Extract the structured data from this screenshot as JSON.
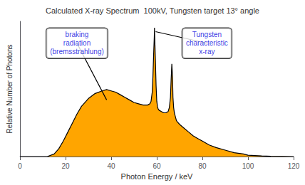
{
  "chart_data": {
    "type": "area",
    "title": "Calculated X-ray Spectrum  100kV, Tungsten target 13° angle",
    "xlabel": "Photon Energy / keV",
    "ylabel": "Relative Number of Photons",
    "color": "#FFA500",
    "xlim": [
      0,
      120
    ],
    "ylim": [
      0,
      1.05
    ],
    "xticks": [
      0,
      20,
      40,
      60,
      80,
      100,
      120
    ],
    "yticks": [],
    "tick_labels": "x",
    "grid": false,
    "x": [
      0,
      8,
      12,
      15,
      17,
      19,
      21,
      23,
      25,
      27,
      30,
      33,
      36,
      38,
      40,
      42,
      44,
      46,
      48,
      50,
      52,
      54,
      56,
      57,
      57.5,
      58,
      58.3,
      58.6,
      58.9,
      59.0,
      59.1,
      59.4,
      59.7,
      60.0,
      60.3,
      60.6,
      61.0,
      62,
      63,
      64,
      65,
      65.5,
      66.0,
      66.3,
      66.6,
      66.9,
      67.0,
      67.1,
      67.4,
      67.7,
      68.0,
      68.3,
      68.6,
      69,
      70,
      72,
      74,
      76,
      78,
      80,
      83,
      86,
      90,
      94,
      98,
      100,
      103,
      106,
      110,
      115,
      120
    ],
    "values": [
      0,
      0.0,
      0.0,
      0.02,
      0.06,
      0.12,
      0.19,
      0.26,
      0.33,
      0.39,
      0.45,
      0.49,
      0.51,
      0.52,
      0.51,
      0.5,
      0.48,
      0.46,
      0.44,
      0.42,
      0.41,
      0.4,
      0.4,
      0.41,
      0.43,
      0.5,
      0.62,
      0.78,
      0.93,
      1.0,
      0.93,
      0.75,
      0.55,
      0.43,
      0.39,
      0.37,
      0.36,
      0.35,
      0.34,
      0.34,
      0.35,
      0.38,
      0.46,
      0.6,
      0.72,
      0.62,
      0.55,
      0.46,
      0.38,
      0.34,
      0.32,
      0.3,
      0.28,
      0.27,
      0.25,
      0.22,
      0.19,
      0.16,
      0.14,
      0.12,
      0.09,
      0.07,
      0.05,
      0.03,
      0.02,
      0.01,
      0.008,
      0.005,
      0.002,
      0.001,
      0
    ],
    "annotations": [
      {
        "text": "braking\nradiation\n(bremsstrahlung)",
        "color": "#0000DD",
        "x": 38,
        "y": 0.44,
        "text_x": 25,
        "text_y": 0.88
      },
      {
        "text": "Tungsten\ncharacteristic\nx-ray",
        "color": "#0000DD",
        "x": 59.5,
        "y": 0.97,
        "text_x": 82,
        "text_y": 0.88
      }
    ]
  }
}
